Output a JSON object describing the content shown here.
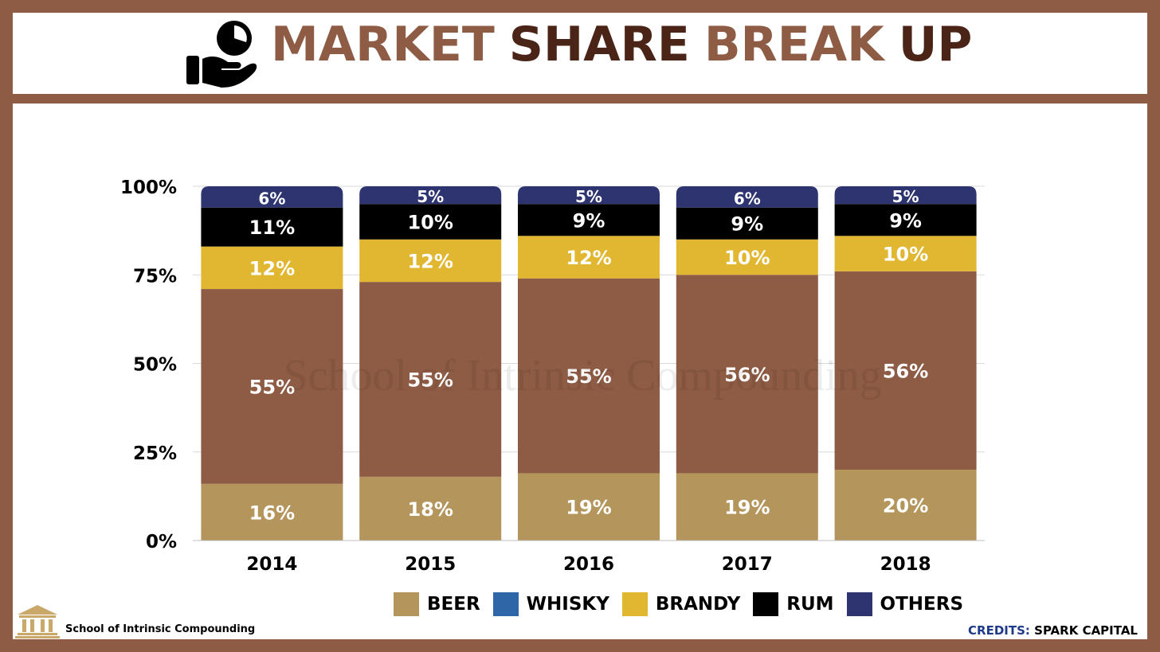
{
  "header": {
    "title_words": [
      "MARKET",
      "SHARE",
      "BREAK",
      "UP"
    ],
    "title_colors": [
      "#8e5b44",
      "#4a2517",
      "#8e5b44",
      "#4a2517"
    ],
    "icon": "hand-holding-pie-chart-icon"
  },
  "watermark": "School of Intrinsic Compounding",
  "footer": {
    "school_name": "School of Intrinsic Compounding",
    "school_icon": "institution-building-icon",
    "credits_label": "CREDITS:",
    "credits_value": "SPARK CAPITAL"
  },
  "colors": {
    "background": "#8e5b44",
    "beer": "#b4965d",
    "whisky": "#2f66a8",
    "brandy": "#e1b731",
    "rum": "#000000",
    "others": "#2e3470",
    "beer_whisky_bar": "#8e5b44"
  },
  "chart_data": {
    "type": "bar",
    "stacked": true,
    "categories": [
      "2014",
      "2015",
      "2016",
      "2017",
      "2018"
    ],
    "yticks": [
      "0%",
      "25%",
      "50%",
      "75%",
      "100%"
    ],
    "ylim": [
      0,
      100
    ],
    "grid": true,
    "legend_position": "bottom",
    "legend": [
      {
        "name": "BEER",
        "color": "#b4965d"
      },
      {
        "name": "WHISKY",
        "color": "#2f66a8"
      },
      {
        "name": "BRANDY",
        "color": "#e1b731"
      },
      {
        "name": "RUM",
        "color": "#000000"
      },
      {
        "name": "OTHERS",
        "color": "#2e3470"
      }
    ],
    "series": [
      {
        "key": "beer",
        "color": "#b4965d",
        "values": [
          16,
          18,
          19,
          19,
          20
        ],
        "labels": [
          "16%",
          "18%",
          "19%",
          "19%",
          "20%"
        ]
      },
      {
        "key": "whisky",
        "color": "#8e5b44",
        "values": [
          55,
          55,
          55,
          56,
          56
        ],
        "labels": [
          "55%",
          "55%",
          "55%",
          "56%",
          "56%"
        ]
      },
      {
        "key": "brandy",
        "color": "#e1b731",
        "values": [
          12,
          12,
          12,
          10,
          10
        ],
        "labels": [
          "12%",
          "12%",
          "12%",
          "10%",
          "10%"
        ]
      },
      {
        "key": "rum",
        "color": "#000000",
        "values": [
          11,
          10,
          9,
          9,
          9
        ],
        "labels": [
          "11%",
          "10%",
          "9%",
          "9%",
          "9%"
        ]
      },
      {
        "key": "others",
        "color": "#2e3470",
        "values": [
          6,
          5,
          5,
          6,
          5
        ],
        "labels": [
          "6%",
          "5%",
          "5%",
          "6%",
          "5%"
        ]
      }
    ]
  }
}
